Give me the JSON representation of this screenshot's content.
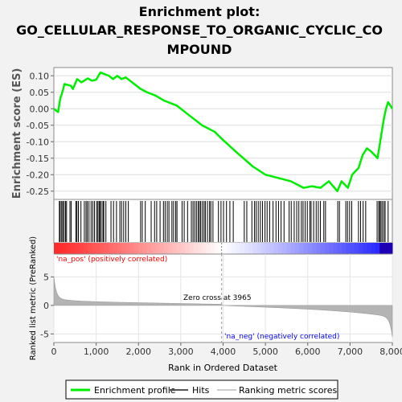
{
  "title_line1": "Enrichment plot:",
  "title_line2": "GO_CELLULAR_RESPONSE_TO_ORGANIC_CYCLIC_CO",
  "title_line3": "MPOUND",
  "es_ylabel": "Enrichment score (ES)",
  "rank_ylabel": "Ranked list metric (PreRanked)",
  "xlabel": "Rank in Ordered Dataset",
  "pos_label": "'na_pos' (positively correlated)",
  "neg_label": "'na_neg' (negatively correlated)",
  "zero_cross_label": "Zero cross at 3965",
  "legend": {
    "enrichment": "Enrichment profile",
    "hits": "Hits",
    "ranking": "Ranking metric scores"
  },
  "colors": {
    "enrichment": "#00ee00",
    "hits": "#000000",
    "ranking_fill": "#b4b4b4",
    "pos_text": "#ff0000",
    "neg_text": "#0000ff",
    "background": "#f2f2f2"
  },
  "chart_data": {
    "type": "line",
    "xlim": [
      0,
      8000
    ],
    "x_ticks": [
      0,
      1000,
      2000,
      3000,
      4000,
      5000,
      6000,
      7000,
      8000
    ],
    "x_tick_labels": [
      "0",
      "1,000",
      "2,000",
      "3,000",
      "4,000",
      "5,000",
      "6,000",
      "7,000",
      "8,000"
    ],
    "es_ylim": [
      -0.275,
      0.125
    ],
    "es_ticks": [
      0.1,
      0.05,
      0.0,
      -0.05,
      -0.1,
      -0.15,
      -0.2,
      -0.25
    ],
    "es_tick_labels": [
      "0.10",
      "0.05",
      "0.00",
      "-0.05",
      "-0.10",
      "-0.15",
      "-0.20",
      "-0.25"
    ],
    "rank_ylim": [
      -6.5,
      9
    ],
    "rank_ticks": [
      5,
      0,
      -5
    ],
    "rank_tick_labels": [
      "5",
      "0",
      "-5"
    ],
    "zero_cross": 3965,
    "enrichment_profile": [
      [
        0,
        0.0
      ],
      [
        100,
        -0.01
      ],
      [
        150,
        0.03
      ],
      [
        200,
        0.05
      ],
      [
        250,
        0.075
      ],
      [
        400,
        0.07
      ],
      [
        450,
        0.06
      ],
      [
        550,
        0.09
      ],
      [
        650,
        0.08
      ],
      [
        800,
        0.092
      ],
      [
        900,
        0.085
      ],
      [
        1000,
        0.088
      ],
      [
        1100,
        0.11
      ],
      [
        1300,
        0.1
      ],
      [
        1400,
        0.09
      ],
      [
        1500,
        0.1
      ],
      [
        1600,
        0.09
      ],
      [
        1700,
        0.095
      ],
      [
        1900,
        0.075
      ],
      [
        2050,
        0.06
      ],
      [
        2200,
        0.05
      ],
      [
        2400,
        0.04
      ],
      [
        2600,
        0.025
      ],
      [
        2900,
        0.01
      ],
      [
        3200,
        -0.02
      ],
      [
        3500,
        -0.05
      ],
      [
        3800,
        -0.07
      ],
      [
        4000,
        -0.095
      ],
      [
        4300,
        -0.13
      ],
      [
        4700,
        -0.175
      ],
      [
        5000,
        -0.2
      ],
      [
        5300,
        -0.21
      ],
      [
        5600,
        -0.22
      ],
      [
        5900,
        -0.24
      ],
      [
        6100,
        -0.235
      ],
      [
        6300,
        -0.24
      ],
      [
        6500,
        -0.22
      ],
      [
        6700,
        -0.25
      ],
      [
        6800,
        -0.22
      ],
      [
        6950,
        -0.24
      ],
      [
        7050,
        -0.2
      ],
      [
        7200,
        -0.18
      ],
      [
        7300,
        -0.14
      ],
      [
        7400,
        -0.12
      ],
      [
        7500,
        -0.13
      ],
      [
        7650,
        -0.15
      ],
      [
        7750,
        -0.07
      ],
      [
        7800,
        -0.03
      ],
      [
        7850,
        0.0
      ],
      [
        7900,
        0.02
      ],
      [
        8000,
        0.0
      ]
    ],
    "hit_ranks": [
      130,
      150,
      185,
      210,
      240,
      275,
      300,
      380,
      410,
      520,
      545,
      580,
      640,
      720,
      760,
      790,
      830,
      880,
      920,
      960,
      1010,
      1040,
      1070,
      1090,
      1120,
      1160,
      1180,
      1230,
      1350,
      1410,
      1480,
      1560,
      1600,
      1650,
      1700,
      1760,
      2050,
      2090,
      2160,
      2300,
      2380,
      2430,
      2510,
      2590,
      2630,
      2680,
      2720,
      2790,
      2830,
      2880,
      2910,
      3030,
      3080,
      3160,
      3250,
      3290,
      3330,
      3370,
      3410,
      3440,
      3470,
      3510,
      3550,
      3580,
      3630,
      3680,
      3710,
      3760,
      3890,
      3950,
      4010,
      4080,
      4160,
      4240,
      4500,
      4560,
      4680,
      4740,
      4780,
      4830,
      4880,
      4930,
      4990,
      5040,
      5100,
      5180,
      5250,
      5310,
      5370,
      5440,
      5560,
      5610,
      5680,
      5740,
      5790,
      5850,
      5890,
      5940,
      5990,
      6050,
      6080,
      6140,
      6200,
      6250,
      6300,
      6380,
      6420,
      6710,
      6750,
      6900,
      6940,
      6990,
      7040,
      7200,
      7250,
      7310,
      7370,
      7640,
      7680,
      7700,
      7730,
      7760,
      7800,
      7830,
      7900
    ]
  }
}
